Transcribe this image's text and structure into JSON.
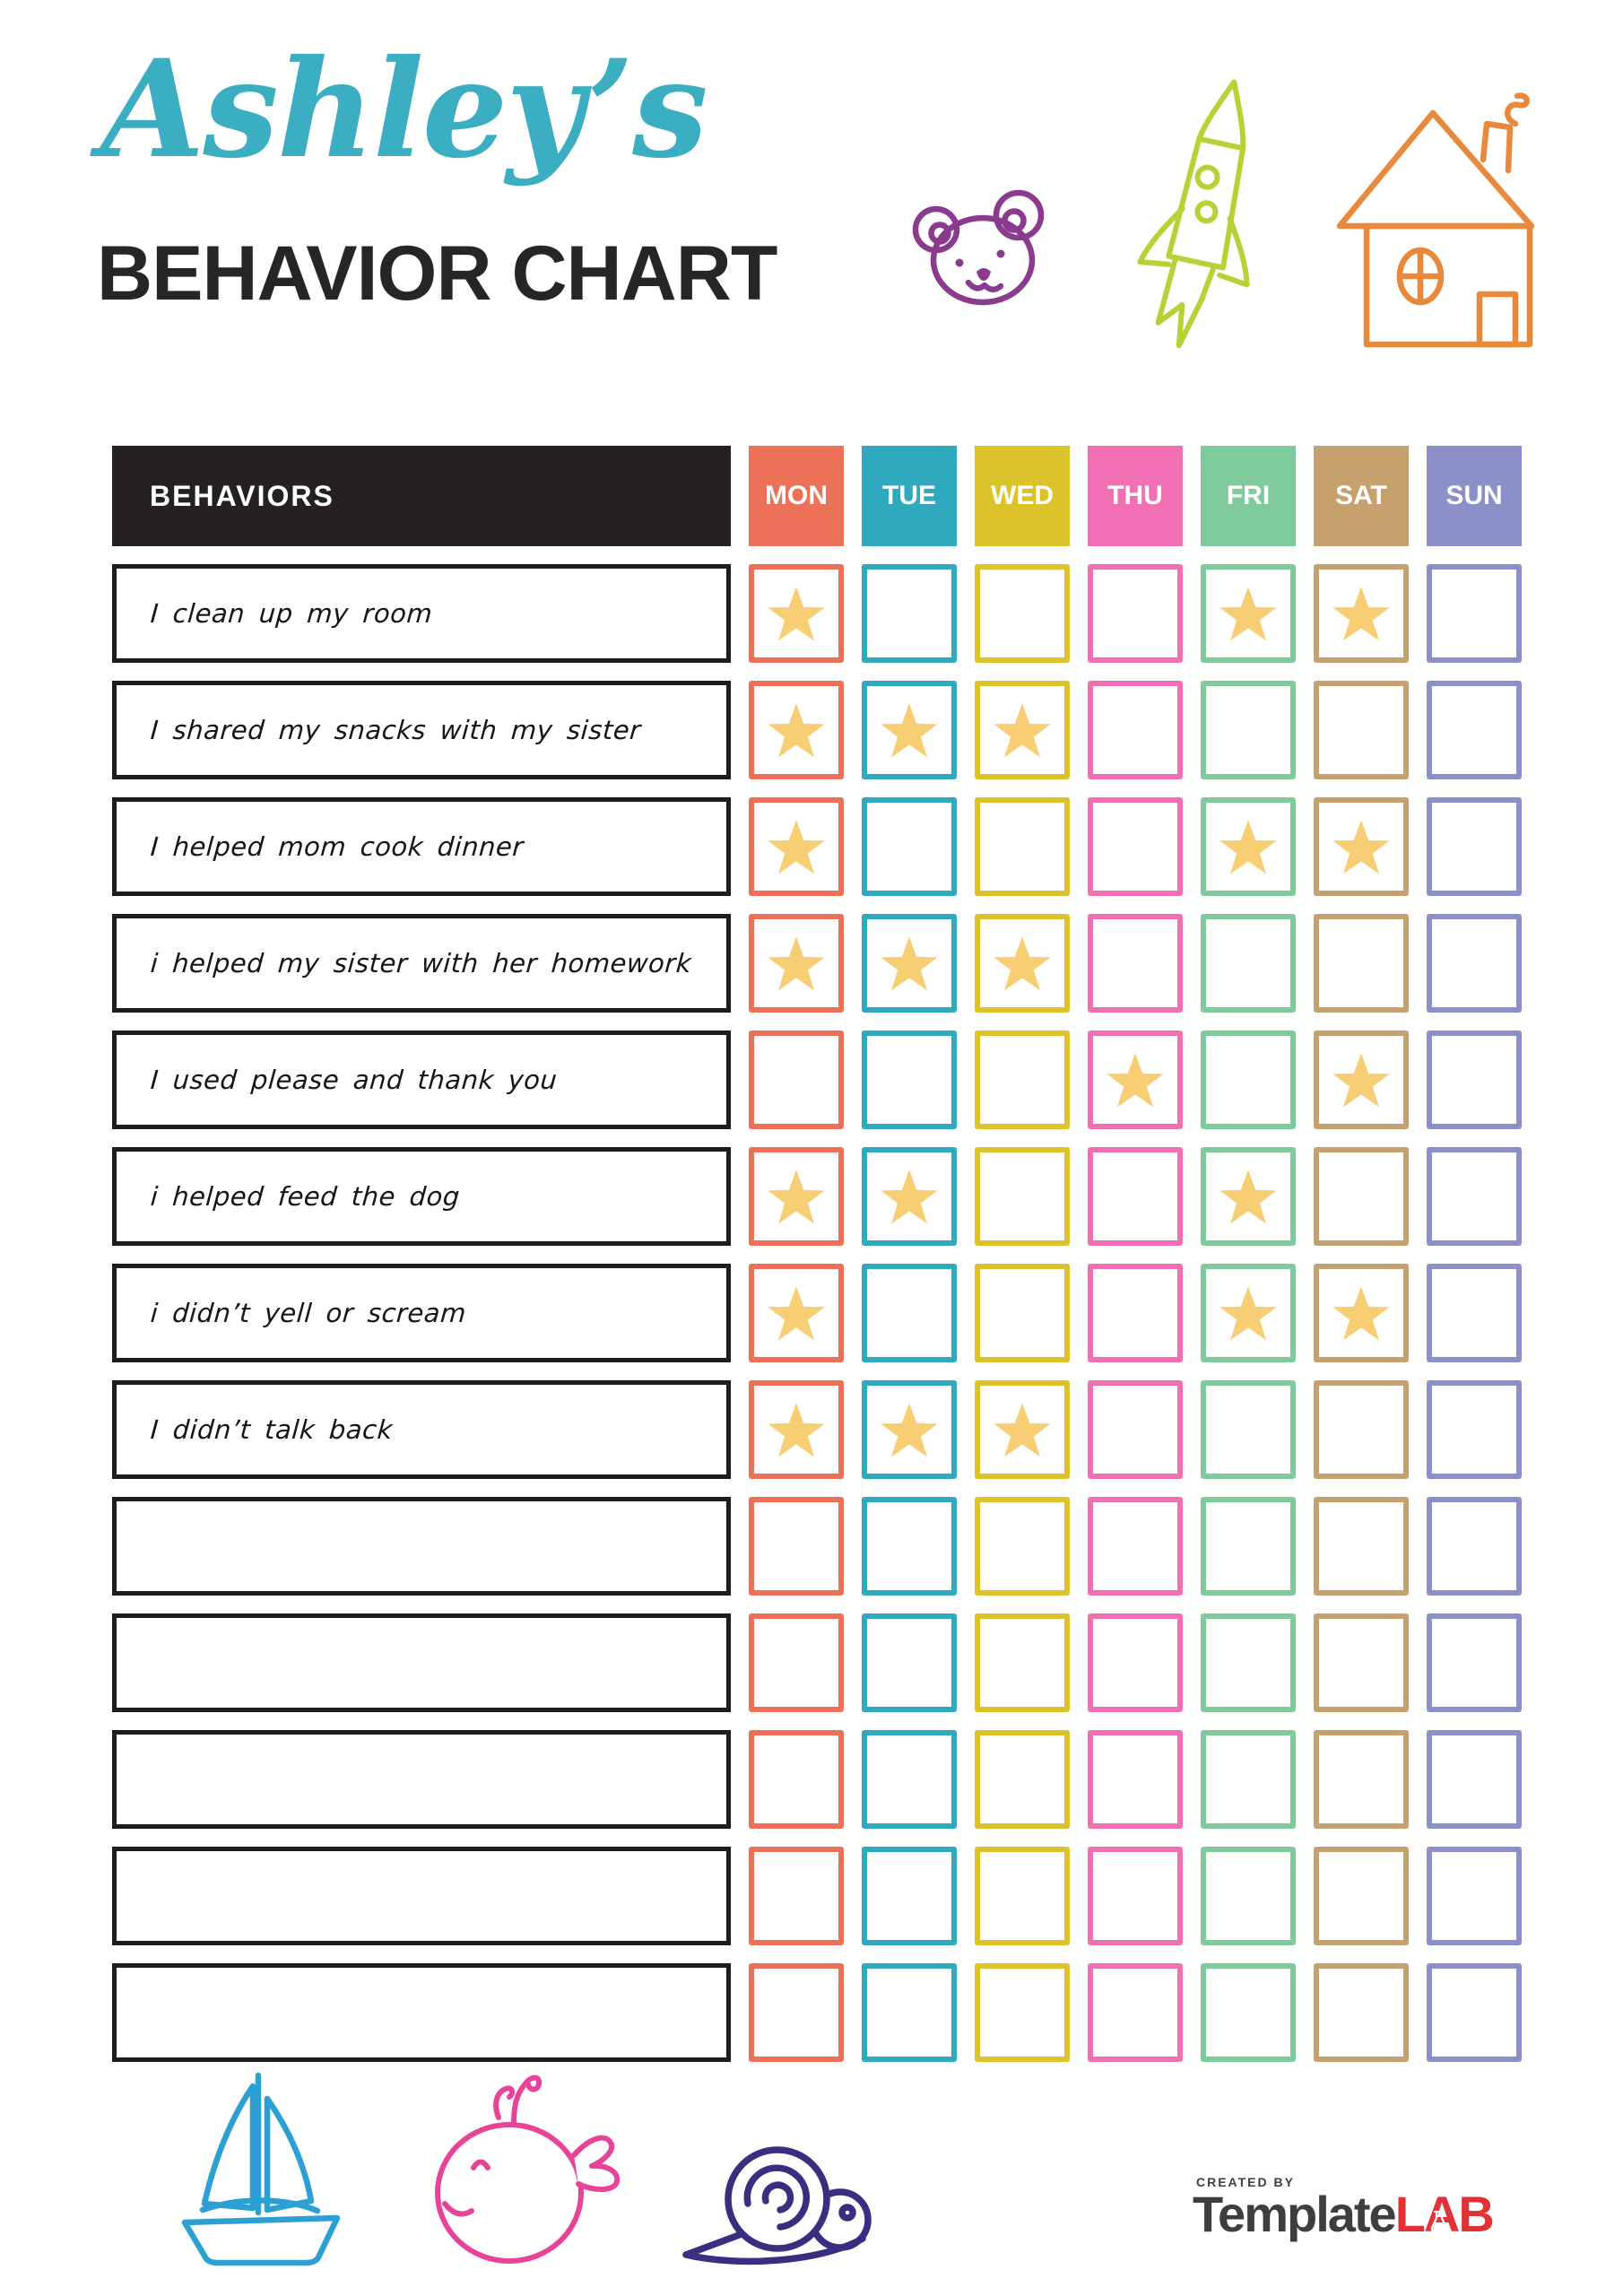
{
  "title": {
    "name": "Ashley’s",
    "subtitle": "BEHAVIOR CHART"
  },
  "colors": {
    "title_script": "#3bafc1",
    "subtitle": "#262626",
    "header_bg": "#252122",
    "row_border": "#1d1d1d",
    "star": "#f7ce73",
    "bear": "#8a3b8e",
    "rocket": "#b5d336",
    "house": "#e8893b",
    "sailboat": "#2ca0d2",
    "whale": "#e64399",
    "snail": "#382f80",
    "brand_dark": "#3e3e3e",
    "brand_red": "#e13238"
  },
  "table": {
    "behaviors_header": "BEHAVIORS",
    "days": [
      {
        "label": "MON",
        "color": "#ec7158"
      },
      {
        "label": "TUE",
        "color": "#2fa9be"
      },
      {
        "label": "WED",
        "color": "#dcc32b"
      },
      {
        "label": "THU",
        "color": "#f170b3"
      },
      {
        "label": "FRI",
        "color": "#7fcb9d"
      },
      {
        "label": "SAT",
        "color": "#c6a06d"
      },
      {
        "label": "SUN",
        "color": "#8b90c8"
      }
    ],
    "rows": [
      {
        "behavior": "I clean up my room",
        "stars": [
          "MON",
          "FRI",
          "SAT"
        ]
      },
      {
        "behavior": "I shared my snacks with my sister",
        "stars": [
          "MON",
          "TUE",
          "WED"
        ]
      },
      {
        "behavior": "I helped mom cook dinner",
        "stars": [
          "MON",
          "FRI",
          "SAT"
        ]
      },
      {
        "behavior": "i helped my sister with her homework",
        "stars": [
          "MON",
          "TUE",
          "WED"
        ]
      },
      {
        "behavior": "I used please and thank you",
        "stars": [
          "THU",
          "SAT"
        ]
      },
      {
        "behavior": "i helped feed the dog",
        "stars": [
          "MON",
          "TUE",
          "FRI"
        ]
      },
      {
        "behavior": "i didn’t yell or scream",
        "stars": [
          "MON",
          "FRI",
          "SAT"
        ]
      },
      {
        "behavior": "I didn’t talk back",
        "stars": [
          "MON",
          "TUE",
          "WED"
        ]
      },
      {
        "behavior": "",
        "stars": []
      },
      {
        "behavior": "",
        "stars": []
      },
      {
        "behavior": "",
        "stars": []
      },
      {
        "behavior": "",
        "stars": []
      },
      {
        "behavior": "",
        "stars": []
      }
    ]
  },
  "footer": {
    "credit": "CREATED BY",
    "brand_dark": "Template",
    "brand_red": "LAB"
  },
  "decorations": {
    "top_icons": [
      "bear-doodle-icon",
      "rocket-doodle-icon",
      "house-doodle-icon"
    ],
    "bottom_icons": [
      "sailboat-doodle-icon",
      "whale-doodle-icon",
      "snail-doodle-icon"
    ]
  }
}
